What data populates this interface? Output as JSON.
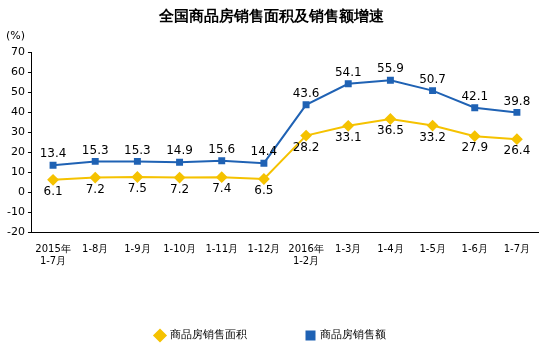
{
  "chart_data": {
    "type": "line",
    "title": "全国商品房销售面积及销售额增速",
    "ylabel": "(%)",
    "categories": [
      "2015年 1-7月",
      "1-8月",
      "1-9月",
      "1-10月",
      "1-11月",
      "1-12月",
      "2016年 1-2月",
      "1-3月",
      "1-4月",
      "1-5月",
      "1-6月",
      "1-7月"
    ],
    "series": [
      {
        "name": "商品房销售面积",
        "color": "#F5C200",
        "marker": "diamond",
        "values": [
          6.1,
          7.2,
          7.5,
          7.2,
          7.4,
          6.5,
          28.2,
          33.1,
          36.5,
          33.2,
          27.9,
          26.4
        ]
      },
      {
        "name": "商品房销售额",
        "color": "#1F62B4",
        "marker": "square",
        "values": [
          13.4,
          15.3,
          15.3,
          14.9,
          15.6,
          14.4,
          43.6,
          54.1,
          55.9,
          50.7,
          42.1,
          39.8
        ]
      }
    ],
    "ylim": [
      -20,
      70
    ],
    "yticks": [
      -20,
      -10,
      0,
      10,
      20,
      30,
      40,
      50,
      60,
      70
    ],
    "grid": false,
    "legend": "bottom",
    "data_labels": true
  }
}
